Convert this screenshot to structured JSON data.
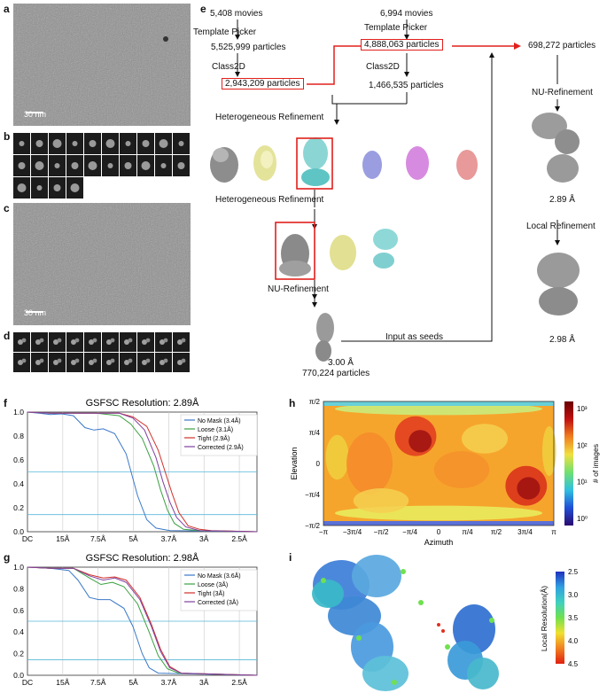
{
  "panels": {
    "a": "a",
    "b": "b",
    "c": "c",
    "d": "d",
    "e": "e",
    "f": "f",
    "g": "g",
    "h": "h",
    "i": "i"
  },
  "scalebars": {
    "a": "30 nm",
    "c": "30 nm"
  },
  "flow": {
    "left_movies": "5,408 movies",
    "left_picker": "Template Picker",
    "left_particles": "5,525,999 particles",
    "left_class2d": "Class2D",
    "left_selected": "2,943,209 particles",
    "right_movies": "6,994 movies",
    "right_picker": "Template Picker",
    "right_particles": "4,888,063 particles",
    "right_class2d": "Class2D",
    "right_selected": "1,466,535 particles",
    "hetero1": "Heterogeneous Refinement",
    "hetero2": "Heterogeneous Refinement",
    "nu_left": "NU-Refinement",
    "res_left": "3.00 Å",
    "particles_left": "770,224 particles",
    "seeds": "Input as seeds",
    "merged": "698,272 particles",
    "nu_right": "NU-Refinement",
    "res_right1": "2.89 Å",
    "local": "Local Refinement",
    "res_right2": "2.98 Å"
  },
  "chart_data": [
    {
      "type": "line",
      "title": "GSFSC Resolution: 2.89Å",
      "xticks": [
        "DC",
        "15Å",
        "7.5Å",
        "5Å",
        "3.7Å",
        "3Å",
        "2.5Å"
      ],
      "yticks": [
        "0.0",
        "0.2",
        "0.4",
        "0.6",
        "0.8",
        "1.0"
      ],
      "ylim": [
        0,
        1
      ],
      "thresholds": [
        0.143,
        0.5
      ],
      "series": [
        {
          "name": "No Mask (3.4Å)",
          "color": "#3a78c8",
          "points": [
            [
              0,
              1
            ],
            [
              0.05,
              0.99
            ],
            [
              0.1,
              0.98
            ],
            [
              0.15,
              0.985
            ],
            [
              0.2,
              0.97
            ],
            [
              0.25,
              0.87
            ],
            [
              0.29,
              0.85
            ],
            [
              0.33,
              0.86
            ],
            [
              0.38,
              0.82
            ],
            [
              0.43,
              0.65
            ],
            [
              0.48,
              0.3
            ],
            [
              0.52,
              0.1
            ],
            [
              0.56,
              0.03
            ],
            [
              0.62,
              0.01
            ],
            [
              1,
              0.0
            ]
          ]
        },
        {
          "name": "Loose (3.1Å)",
          "color": "#3aa040",
          "points": [
            [
              0,
              1
            ],
            [
              0.1,
              0.99
            ],
            [
              0.2,
              0.99
            ],
            [
              0.3,
              0.99
            ],
            [
              0.4,
              0.97
            ],
            [
              0.45,
              0.9
            ],
            [
              0.5,
              0.78
            ],
            [
              0.55,
              0.55
            ],
            [
              0.58,
              0.35
            ],
            [
              0.61,
              0.18
            ],
            [
              0.64,
              0.07
            ],
            [
              0.68,
              0.02
            ],
            [
              0.75,
              0.01
            ],
            [
              1,
              0.0
            ]
          ]
        },
        {
          "name": "Tight (2.9Å)",
          "color": "#d0302a",
          "points": [
            [
              0,
              1
            ],
            [
              0.1,
              0.99
            ],
            [
              0.2,
              0.99
            ],
            [
              0.3,
              0.99
            ],
            [
              0.4,
              0.99
            ],
            [
              0.46,
              0.96
            ],
            [
              0.52,
              0.88
            ],
            [
              0.57,
              0.68
            ],
            [
              0.6,
              0.5
            ],
            [
              0.63,
              0.32
            ],
            [
              0.66,
              0.16
            ],
            [
              0.7,
              0.05
            ],
            [
              0.75,
              0.02
            ],
            [
              0.8,
              0.01
            ],
            [
              1,
              0.0
            ]
          ]
        },
        {
          "name": "Corrected (2.9Å)",
          "color": "#8040a0",
          "points": [
            [
              0,
              1
            ],
            [
              0.1,
              0.99
            ],
            [
              0.2,
              0.99
            ],
            [
              0.3,
              0.99
            ],
            [
              0.4,
              0.99
            ],
            [
              0.46,
              0.95
            ],
            [
              0.51,
              0.85
            ],
            [
              0.56,
              0.62
            ],
            [
              0.59,
              0.42
            ],
            [
              0.62,
              0.25
            ],
            [
              0.65,
              0.12
            ],
            [
              0.69,
              0.04
            ],
            [
              0.75,
              0.01
            ],
            [
              1,
              0.0
            ]
          ]
        }
      ]
    },
    {
      "type": "line",
      "title": "GSFSC Resolution: 2.98Å",
      "xticks": [
        "DC",
        "15Å",
        "7.5Å",
        "5Å",
        "3.7Å",
        "3Å",
        "2.5Å"
      ],
      "yticks": [
        "0.0",
        "0.2",
        "0.4",
        "0.6",
        "0.8",
        "1.0"
      ],
      "ylim": [
        0,
        1
      ],
      "thresholds": [
        0.143,
        0.5
      ],
      "series": [
        {
          "name": "No Mask (3.6Å)",
          "color": "#3a78c8",
          "points": [
            [
              0,
              1
            ],
            [
              0.1,
              0.99
            ],
            [
              0.18,
              0.97
            ],
            [
              0.22,
              0.88
            ],
            [
              0.27,
              0.72
            ],
            [
              0.31,
              0.7
            ],
            [
              0.36,
              0.7
            ],
            [
              0.42,
              0.62
            ],
            [
              0.46,
              0.45
            ],
            [
              0.5,
              0.2
            ],
            [
              0.53,
              0.07
            ],
            [
              0.57,
              0.02
            ],
            [
              1,
              0.0
            ]
          ]
        },
        {
          "name": "Loose (3Å)",
          "color": "#3aa040",
          "points": [
            [
              0,
              1
            ],
            [
              0.1,
              0.99
            ],
            [
              0.2,
              0.99
            ],
            [
              0.27,
              0.9
            ],
            [
              0.32,
              0.84
            ],
            [
              0.37,
              0.86
            ],
            [
              0.42,
              0.82
            ],
            [
              0.48,
              0.66
            ],
            [
              0.53,
              0.4
            ],
            [
              0.57,
              0.18
            ],
            [
              0.61,
              0.06
            ],
            [
              0.66,
              0.02
            ],
            [
              1,
              0.0
            ]
          ]
        },
        {
          "name": "Tight (3Å)",
          "color": "#d0302a",
          "points": [
            [
              0,
              1
            ],
            [
              0.1,
              0.99
            ],
            [
              0.2,
              0.99
            ],
            [
              0.27,
              0.93
            ],
            [
              0.33,
              0.9
            ],
            [
              0.38,
              0.91
            ],
            [
              0.43,
              0.88
            ],
            [
              0.49,
              0.72
            ],
            [
              0.54,
              0.47
            ],
            [
              0.58,
              0.24
            ],
            [
              0.62,
              0.08
            ],
            [
              0.67,
              0.02
            ],
            [
              1,
              0.0
            ]
          ]
        },
        {
          "name": "Corrected (3Å)",
          "color": "#8040a0",
          "points": [
            [
              0,
              1
            ],
            [
              0.1,
              0.99
            ],
            [
              0.2,
              0.99
            ],
            [
              0.27,
              0.92
            ],
            [
              0.33,
              0.88
            ],
            [
              0.38,
              0.9
            ],
            [
              0.43,
              0.86
            ],
            [
              0.49,
              0.7
            ],
            [
              0.54,
              0.45
            ],
            [
              0.58,
              0.22
            ],
            [
              0.62,
              0.07
            ],
            [
              0.67,
              0.02
            ],
            [
              1,
              0.0
            ]
          ]
        }
      ]
    },
    {
      "type": "heatmap",
      "xlabel": "Azimuth",
      "ylabel": "Elevation",
      "xticks": [
        "−π",
        "−3π/4",
        "−π/2",
        "−π/4",
        "0",
        "π/4",
        "π/2",
        "3π/4",
        "π"
      ],
      "yticks": [
        "π/2",
        "π/4",
        "0",
        "−π/4",
        "−π/2"
      ],
      "colorbar_label": "# of images",
      "colorbar_ticks": [
        "10³",
        "10²",
        "10¹",
        "10⁰"
      ]
    },
    {
      "type": "table",
      "colorbar_label": "Local Resolution(Å)",
      "colorbar_ticks": [
        "2.5",
        "3.0",
        "3.5",
        "4.0",
        "4.5"
      ]
    }
  ]
}
